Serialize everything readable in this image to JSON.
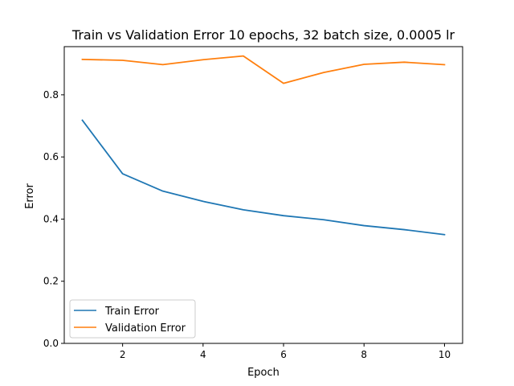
{
  "chart_data": {
    "type": "line",
    "title": "Train vs Validation Error 10 epochs, 32 batch size, 0.0005 lr",
    "xlabel": "Epoch",
    "ylabel": "Error",
    "x": [
      1,
      2,
      3,
      4,
      5,
      6,
      7,
      8,
      9,
      10
    ],
    "xlim": [
      0.55,
      10.45
    ],
    "ylim": [
      0,
      0.955
    ],
    "xticks": [
      2,
      4,
      6,
      8,
      10
    ],
    "yticks": [
      0.0,
      0.2,
      0.4,
      0.6,
      0.8
    ],
    "xtick_labels": [
      "2",
      "4",
      "6",
      "8",
      "10"
    ],
    "ytick_labels": [
      "0.0",
      "0.2",
      "0.4",
      "0.6",
      "0.8"
    ],
    "grid": false,
    "legend_position": "lower-left",
    "series": [
      {
        "name": "Train Error",
        "color": "#1f77b4",
        "values": [
          0.718,
          0.546,
          0.49,
          0.457,
          0.43,
          0.411,
          0.398,
          0.379,
          0.366,
          0.35
        ]
      },
      {
        "name": "Validation Error",
        "color": "#ff7f0e",
        "values": [
          0.914,
          0.911,
          0.897,
          0.913,
          0.925,
          0.837,
          0.872,
          0.898,
          0.905,
          0.897
        ]
      }
    ]
  }
}
